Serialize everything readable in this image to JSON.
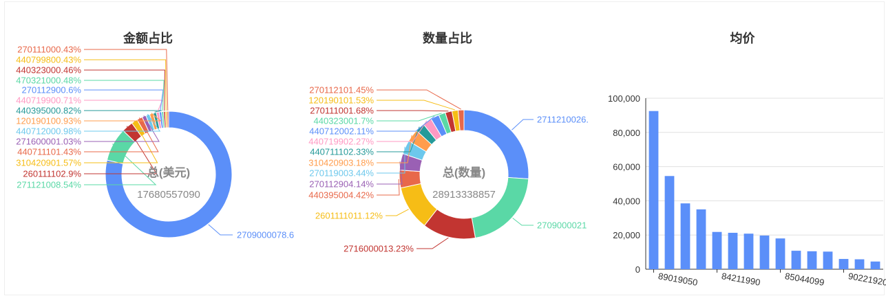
{
  "chart_data": [
    {
      "type": "pie",
      "title": "金额占比",
      "center_label": "总(美元)",
      "center_value": "17680557090",
      "slices": [
        {
          "label": "2709000078.6",
          "value": 78.6,
          "color": "#5b8ff9"
        },
        {
          "label": "271121008.54%",
          "value": 8.54,
          "color": "#5ad8a6"
        },
        {
          "label": "260111102.9%",
          "value": 2.9,
          "color": "#c23531"
        },
        {
          "label": "310420901.57%",
          "value": 1.57,
          "color": "#f6bd16"
        },
        {
          "label": "440711101.43%",
          "value": 1.43,
          "color": "#e8684a"
        },
        {
          "label": "271600001.03%",
          "value": 1.03,
          "color": "#9a60b4"
        },
        {
          "label": "440712000.98%",
          "value": 0.98,
          "color": "#6dc8ec"
        },
        {
          "label": "120190100.93%",
          "value": 0.93,
          "color": "#ff9d4d"
        },
        {
          "label": "440395000.82%",
          "value": 0.82,
          "color": "#269a99"
        },
        {
          "label": "440719900.71%",
          "value": 0.71,
          "color": "#ff99c3"
        },
        {
          "label": "270112900.6%",
          "value": 0.6,
          "color": "#5b8ff9"
        },
        {
          "label": "470321000.48%",
          "value": 0.48,
          "color": "#5ad8a6"
        },
        {
          "label": "440323000.46%",
          "value": 0.46,
          "color": "#c23531"
        },
        {
          "label": "440799800.43%",
          "value": 0.43,
          "color": "#f6bd16"
        },
        {
          "label": "270111000.43%",
          "value": 0.43,
          "color": "#e8684a"
        }
      ]
    },
    {
      "type": "pie",
      "title": "数量占比",
      "center_label": "总(数量)",
      "center_value": "28913338857",
      "slices": [
        {
          "label": "2711210026.",
          "value": 26.0,
          "color": "#5b8ff9"
        },
        {
          "label": "2709000021",
          "value": 21.0,
          "color": "#5ad8a6"
        },
        {
          "label": "2716000013.23%",
          "value": 13.23,
          "color": "#c23531"
        },
        {
          "label": "2601111011.12%",
          "value": 11.12,
          "color": "#f6bd16"
        },
        {
          "label": "440395004.42%",
          "value": 4.42,
          "color": "#e8684a"
        },
        {
          "label": "270112904.14%",
          "value": 4.14,
          "color": "#9a60b4"
        },
        {
          "label": "270119003.44%",
          "value": 3.44,
          "color": "#6dc8ec"
        },
        {
          "label": "310420903.18%",
          "value": 3.18,
          "color": "#ff9d4d"
        },
        {
          "label": "440711102.33%",
          "value": 2.33,
          "color": "#269a99"
        },
        {
          "label": "440719902.27%",
          "value": 2.27,
          "color": "#ff99c3"
        },
        {
          "label": "440712002.11%",
          "value": 2.11,
          "color": "#5b8ff9"
        },
        {
          "label": "440323001.7%",
          "value": 1.7,
          "color": "#5ad8a6"
        },
        {
          "label": "270111001.68%",
          "value": 1.68,
          "color": "#c23531"
        },
        {
          "label": "120190101.53%",
          "value": 1.53,
          "color": "#f6bd16"
        },
        {
          "label": "270112101.45%",
          "value": 1.45,
          "color": "#e8684a"
        }
      ]
    },
    {
      "type": "bar",
      "title": "均价",
      "values": [
        92500,
        54500,
        38500,
        35000,
        21800,
        21300,
        20800,
        19700,
        18000,
        10800,
        10500,
        10300,
        6000,
        5800,
        4500
      ],
      "x_tick_labels": [
        "89019050",
        "84211990",
        "85044099",
        "90221920"
      ],
      "y_ticks": [
        "0",
        "20,000",
        "40,000",
        "60,000",
        "80,000",
        "100,000"
      ],
      "ylim": [
        0,
        100000
      ],
      "bar_color": "#5b8ff9",
      "grid": true
    }
  ]
}
